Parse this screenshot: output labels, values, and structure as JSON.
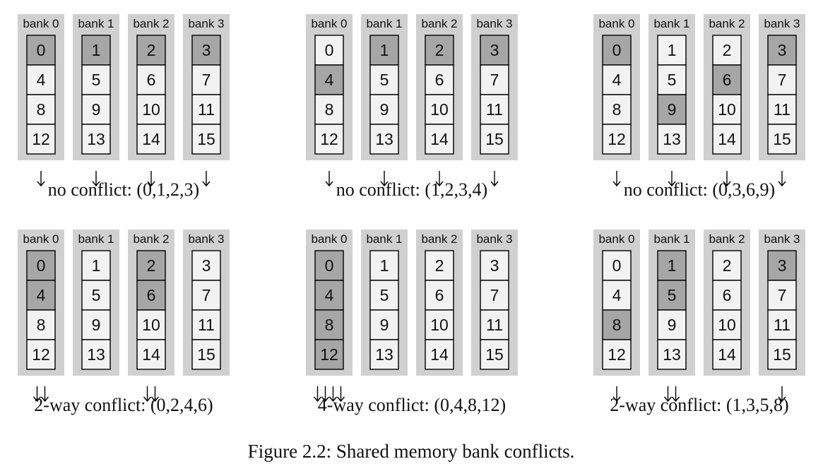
{
  "figure_caption": "Figure 2.2: Shared memory bank conflicts.",
  "bank_labels": [
    "bank 0",
    "bank 1",
    "bank 2",
    "bank 3"
  ],
  "banks": [
    [
      "0",
      "4",
      "8",
      "12"
    ],
    [
      "1",
      "5",
      "9",
      "13"
    ],
    [
      "2",
      "6",
      "10",
      "14"
    ],
    [
      "3",
      "7",
      "11",
      "15"
    ]
  ],
  "colors": {
    "bank_background": "#d0d0d0",
    "cell_normal": "#f2f2f2",
    "cell_highlight": "#a6a6a6",
    "border": "#000000"
  },
  "panels": [
    {
      "caption": "no conflict: (0,1,2,3)",
      "highlighted": [
        "0",
        "1",
        "2",
        "3"
      ],
      "arrow_counts": [
        1,
        1,
        1,
        1
      ]
    },
    {
      "caption": "no conflict: (1,2,3,4)",
      "highlighted": [
        "4",
        "1",
        "2",
        "3"
      ],
      "arrow_counts": [
        1,
        1,
        1,
        1
      ]
    },
    {
      "caption": "no conflict: (0,3,6,9)",
      "highlighted": [
        "0",
        "9",
        "6",
        "3"
      ],
      "arrow_counts": [
        1,
        1,
        1,
        1
      ]
    },
    {
      "caption": "2-way conflict: (0,2,4,6)",
      "highlighted": [
        "0",
        "4",
        "2",
        "6"
      ],
      "arrow_counts": [
        2,
        0,
        2,
        0
      ]
    },
    {
      "caption": "4-way conflict: (0,4,8,12)",
      "highlighted": [
        "0",
        "4",
        "8",
        "12"
      ],
      "arrow_counts": [
        4,
        0,
        0,
        0
      ]
    },
    {
      "caption": "2-way conflict: (1,3,5,8)",
      "highlighted": [
        "8",
        "1",
        "5",
        "3"
      ],
      "arrow_counts": [
        1,
        2,
        0,
        1
      ]
    }
  ]
}
